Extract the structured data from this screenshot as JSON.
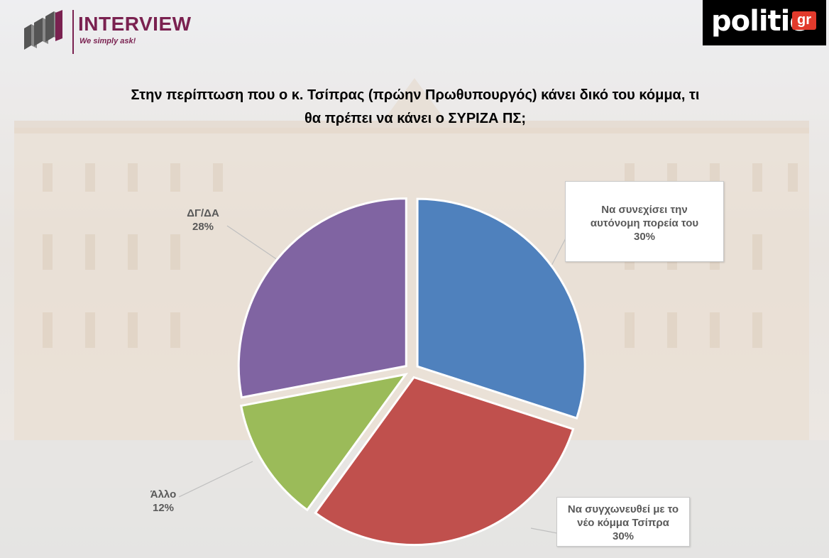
{
  "brand": {
    "left_name": "INTERVIEW",
    "left_tagline": "We simply ask!",
    "right_name": "politic",
    "right_suffix": "gr"
  },
  "chart_data": {
    "type": "pie",
    "title_lines": [
      "Στην περίπτωση που ο κ. Τσίπρας (πρώην Πρωθυπουργός) κάνει δικό του κόμμα, τι",
      "θα πρέπει να κάνει ο ΣΥΡΙΖΑ ΠΣ;"
    ],
    "slices": [
      {
        "label": "Να συνεχίσει την αυτόνομη πορεία του",
        "value": 30,
        "value_label": "30%",
        "color": "#4f81bd"
      },
      {
        "label": "Να συγχωνευθεί με το νέο κόμμα Τσίπρα",
        "value": 30,
        "value_label": "30%",
        "color": "#c0504d"
      },
      {
        "label": "Άλλο",
        "value": 12,
        "value_label": "12%",
        "color": "#9bbb59"
      },
      {
        "label": "ΔΓ/ΔΑ",
        "value": 28,
        "value_label": "28%",
        "color": "#8064a2"
      }
    ]
  },
  "labels": {
    "slice0_line1": "Να συνεχίσει την",
    "slice0_line2": "αυτόνομη πορεία του",
    "slice1_line1": "Να συγχωνευθεί με το",
    "slice1_line2": "νέο κόμμα Τσίπρα"
  }
}
